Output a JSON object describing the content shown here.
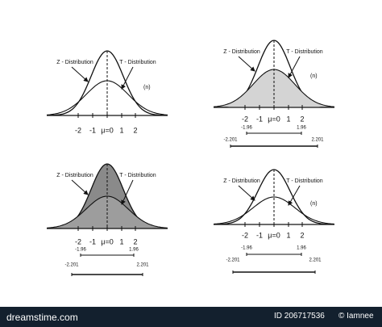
{
  "panels": [
    {
      "z_label": "Z - Distribution",
      "t_label": "T - Distribution",
      "n_label": "(n)",
      "ticks": [
        "-2",
        "-1",
        "μ=0",
        "1",
        "2"
      ],
      "intervals": []
    },
    {
      "z_label": "Z - Distribution",
      "t_label": "T - Distribution",
      "n_label": "(n)",
      "ticks": [
        "-2",
        "-1",
        "μ=0",
        "1",
        "2"
      ],
      "intervals": [
        [
          "-1.96",
          "1.96"
        ],
        [
          "-2.201",
          "2.201"
        ]
      ]
    },
    {
      "z_label": "Z - Distribution",
      "t_label": "T - Distribution",
      "ticks": [
        "-2",
        "-1",
        "μ=0",
        "1",
        "2"
      ],
      "intervals": [
        [
          "-1.96",
          "1.96"
        ],
        [
          "-2.201",
          "2.201"
        ]
      ]
    },
    {
      "z_label": "Z - Distribution",
      "t_label": "T - Distribution",
      "n_label": "(n)",
      "ticks": [
        "-2",
        "-1",
        "μ=0",
        "1",
        "2"
      ],
      "intervals": [
        [
          "-1.96",
          "1.96"
        ],
        [
          "-2.201",
          "2.201"
        ]
      ]
    }
  ],
  "footer": {
    "site": "dreamstime.com",
    "id": "ID 206717536",
    "author": "© Iamnee"
  }
}
